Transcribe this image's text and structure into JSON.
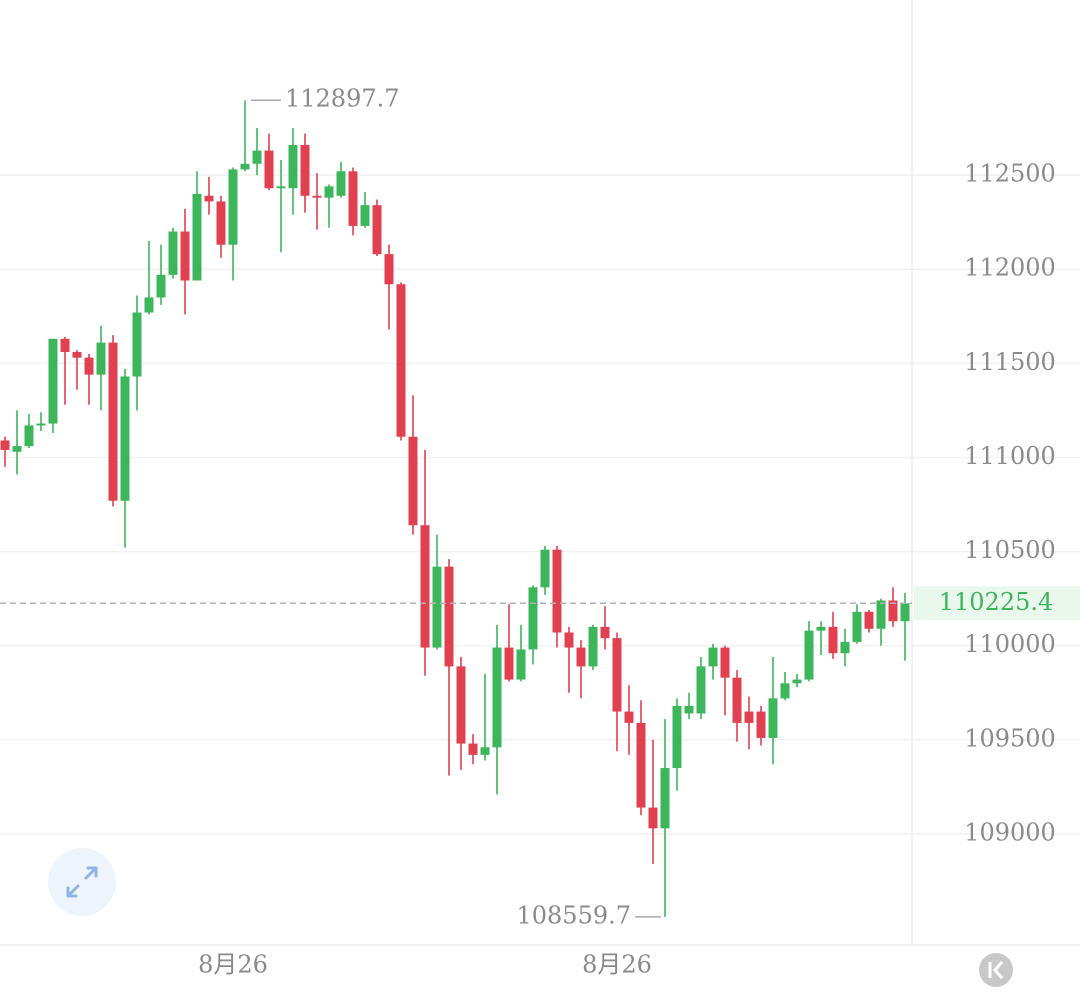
{
  "chart_data": {
    "type": "candlestick",
    "categories": [
      null,
      null,
      null,
      null,
      null,
      null,
      null,
      null,
      null,
      null,
      null,
      null,
      null,
      null,
      null,
      null,
      null,
      null,
      null,
      "8月26",
      null,
      null,
      null,
      null,
      null,
      null,
      null,
      null,
      null,
      null,
      null,
      null,
      null,
      null,
      null,
      null,
      null,
      null,
      null,
      null,
      null,
      null,
      null,
      null,
      null,
      null,
      null,
      null,
      null,
      null,
      null,
      "8月26",
      null,
      null,
      null,
      null,
      null,
      null,
      null,
      null,
      null,
      null,
      null,
      null,
      null,
      null,
      null,
      null,
      null,
      null,
      null,
      null,
      null,
      null,
      null,
      null
    ],
    "open": [
      111090,
      111030,
      111060,
      111170,
      111180,
      111630,
      111560,
      111530,
      111440,
      111610,
      110770,
      111430,
      111770,
      111850,
      111970,
      112200,
      111940,
      112390,
      112360,
      112130,
      112530,
      112560,
      112630,
      112430,
      112430,
      112660,
      112390,
      112380,
      112390,
      112520,
      112230,
      112340,
      112080,
      111920,
      111110,
      110640,
      109990,
      110420,
      109890,
      109480,
      109420,
      109460,
      109990,
      109820,
      109980,
      110310,
      110510,
      110070,
      109990,
      109890,
      110100,
      110040,
      109650,
      109590,
      109140,
      109030,
      109350,
      109640,
      109640,
      109890,
      109990,
      109830,
      109650,
      109650,
      109510,
      109720,
      109800,
      109820,
      110080,
      110100,
      109960,
      110020,
      110180,
      110090,
      110240,
      110130
    ],
    "high": [
      111110,
      111250,
      111230,
      111240,
      111630,
      111640,
      111570,
      111550,
      111700,
      111650,
      111470,
      111860,
      112150,
      112130,
      112220,
      112320,
      112520,
      112490,
      112390,
      112540,
      112897.7,
      112750,
      112720,
      112580,
      112750,
      112720,
      112510,
      112450,
      112570,
      112540,
      112410,
      112370,
      112130,
      111930,
      111330,
      111040,
      110590,
      110460,
      109940,
      109530,
      109850,
      110110,
      110220,
      110110,
      110320,
      110530,
      110530,
      110100,
      110030,
      110110,
      110210,
      110070,
      109790,
      109710,
      109500,
      109610,
      109720,
      109750,
      109940,
      110010,
      110000,
      109870,
      109730,
      109680,
      109940,
      109860,
      109850,
      110130,
      110130,
      110180,
      110090,
      110220,
      110190,
      110250,
      110310,
      110280
    ],
    "low": [
      110950,
      110910,
      111050,
      111140,
      111130,
      111280,
      111360,
      111280,
      111250,
      110740,
      110520,
      111250,
      111760,
      111810,
      111950,
      111760,
      111940,
      112290,
      112060,
      111940,
      112520,
      112500,
      112420,
      112090,
      112290,
      112300,
      112210,
      112220,
      112380,
      112180,
      112220,
      112070,
      111680,
      111090,
      110590,
      109840,
      109980,
      109310,
      109340,
      109370,
      109390,
      109210,
      109810,
      109810,
      109900,
      110270,
      109990,
      109750,
      109720,
      109870,
      109980,
      109440,
      109420,
      109100,
      108840,
      108559.7,
      109230,
      109610,
      109610,
      109820,
      109630,
      109490,
      109450,
      109470,
      109370,
      109710,
      109780,
      109810,
      109950,
      109930,
      109890,
      110010,
      110070,
      110000,
      110100,
      109920
    ],
    "close": [
      111040,
      111060,
      111170,
      111180,
      111630,
      111560,
      111530,
      111440,
      111610,
      110770,
      111430,
      111770,
      111850,
      111970,
      112200,
      111940,
      112400,
      112360,
      112130,
      112530,
      112560,
      112630,
      112430,
      112440,
      112660,
      112390,
      112380,
      112440,
      112520,
      112230,
      112340,
      112080,
      111920,
      111110,
      110640,
      109990,
      110420,
      109890,
      109480,
      109420,
      109460,
      109990,
      109820,
      109980,
      110310,
      110510,
      110070,
      109990,
      109890,
      110100,
      110040,
      109650,
      109590,
      109140,
      109030,
      109350,
      109680,
      109680,
      109890,
      109990,
      109830,
      109590,
      109590,
      109510,
      109720,
      109800,
      109820,
      110080,
      110100,
      109960,
      110020,
      110180,
      110090,
      110240,
      110130,
      110225.4
    ],
    "up_color": "#3db55a",
    "down_color": "#e0404f",
    "ylim": [
      108410,
      113430
    ],
    "yticks": [
      109000,
      109500,
      110000,
      110500,
      111000,
      111500,
      112000,
      112500
    ],
    "grid": true
  }
}
